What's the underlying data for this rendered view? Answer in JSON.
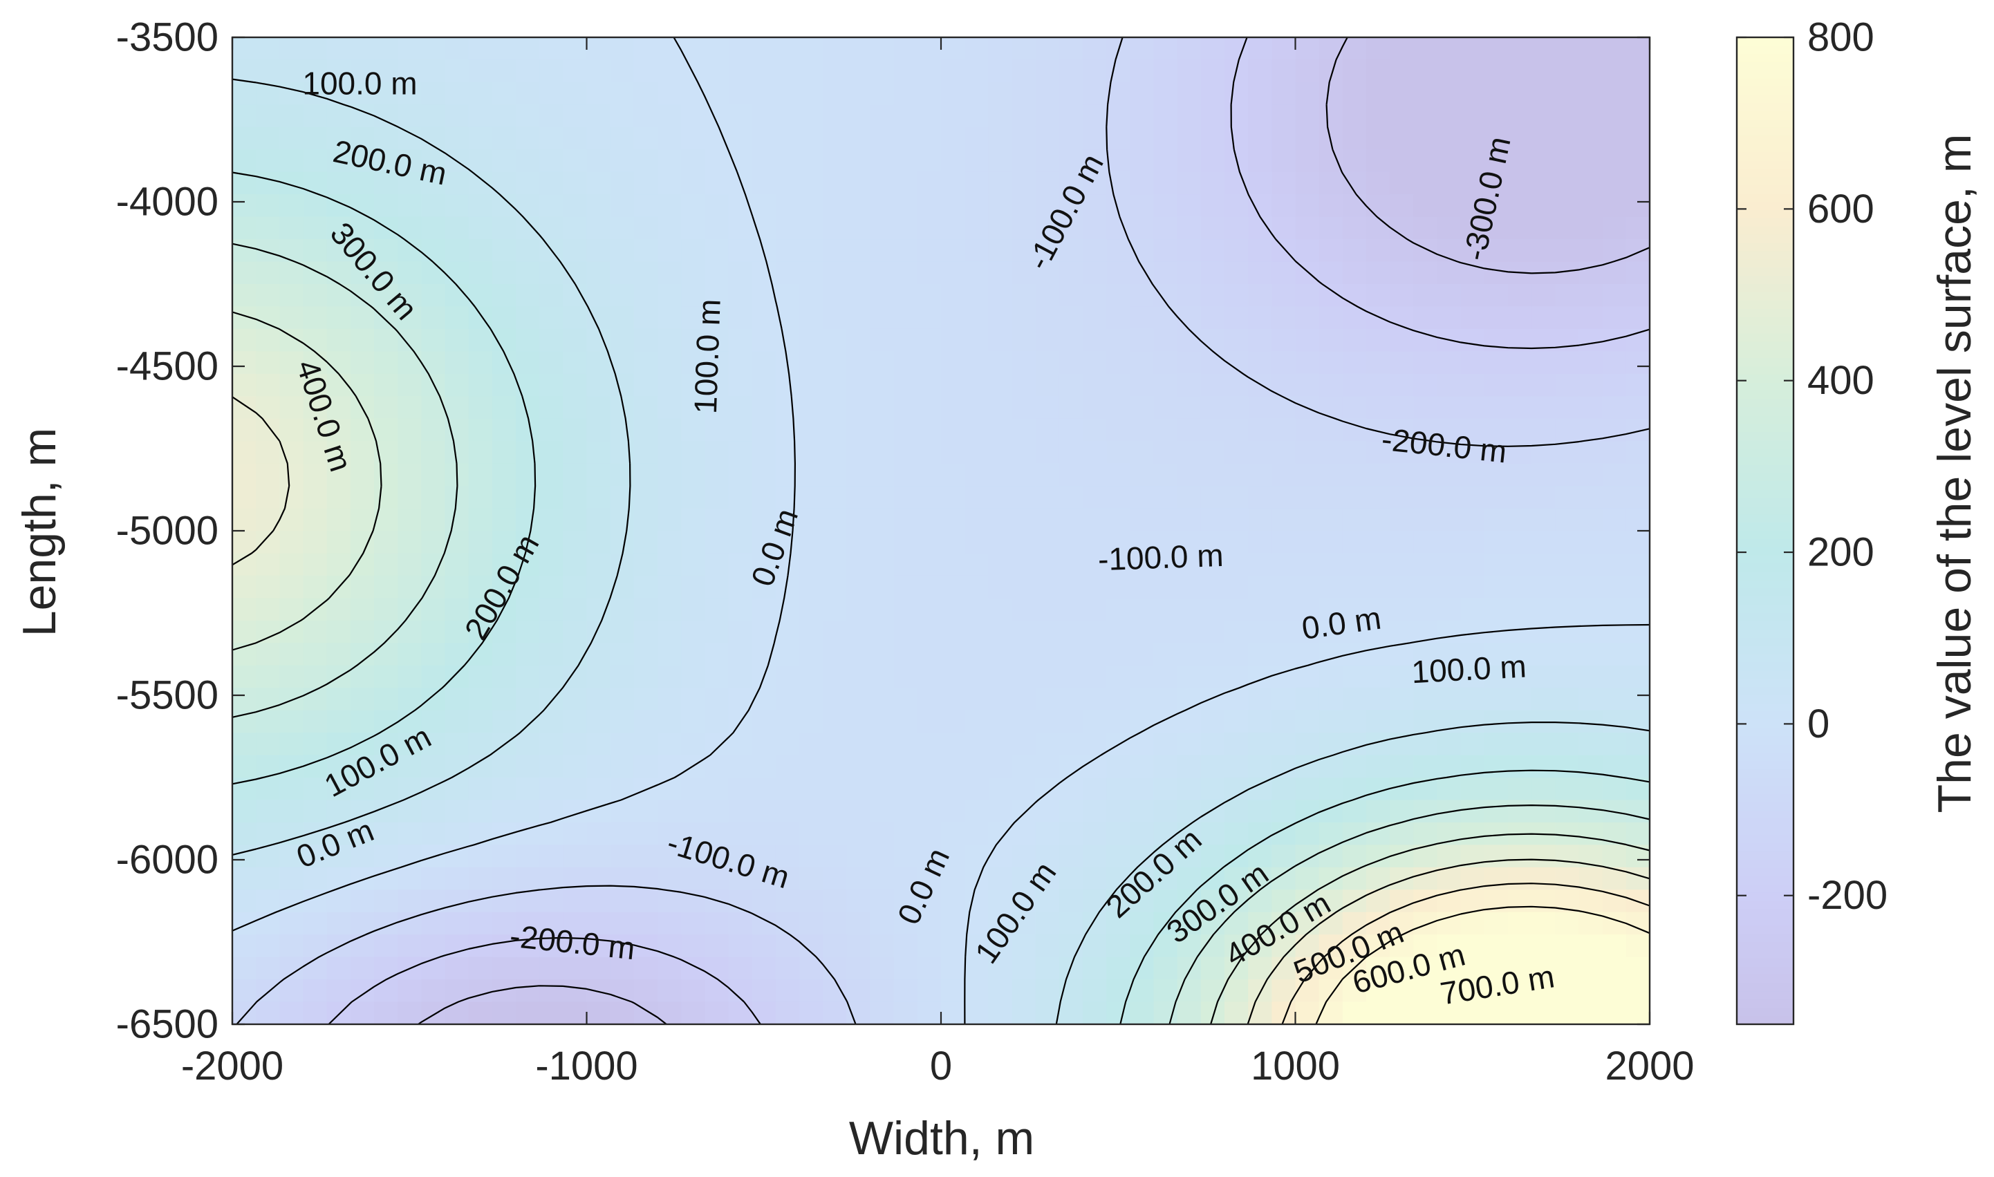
{
  "chart_data": {
    "type": "contour",
    "title": "",
    "xlabel": "Width, m",
    "ylabel": "Length, m",
    "xlim": [
      -2000,
      2000
    ],
    "ylim": [
      -6500,
      -3500
    ],
    "xticks": [
      "-2000",
      "-1000",
      "0",
      "1000",
      "2000"
    ],
    "yticks": [
      "-3500",
      "-4000",
      "-4500",
      "-5000",
      "-5500",
      "-6000",
      "-6500"
    ],
    "contour_levels": [
      -300,
      -200,
      -100,
      0,
      100,
      200,
      300,
      400,
      500,
      600,
      700
    ],
    "level_unit": "m",
    "contour_labels": [
      {
        "text": "100.0 m",
        "x": -1640,
        "y": -3640,
        "angle": 0
      },
      {
        "text": "200.0 m",
        "x": -1555,
        "y": -3880,
        "angle": 12
      },
      {
        "text": "300.0 m",
        "x": -1600,
        "y": -4210,
        "angle": 50
      },
      {
        "text": "400.0 m",
        "x": -1740,
        "y": -4650,
        "angle": 72
      },
      {
        "text": "100.0 m",
        "x": -660,
        "y": -4470,
        "angle": -88
      },
      {
        "text": "200.0 m",
        "x": -1240,
        "y": -5170,
        "angle": -60
      },
      {
        "text": "100.0 m",
        "x": -1590,
        "y": -5700,
        "angle": -28
      },
      {
        "text": "0.0 m",
        "x": -1710,
        "y": -5950,
        "angle": -22
      },
      {
        "text": "0.0 m",
        "x": -470,
        "y": -5050,
        "angle": -70
      },
      {
        "text": "-100.0 m",
        "x": -600,
        "y": -6000,
        "angle": 17
      },
      {
        "text": "-200.0 m",
        "x": -1040,
        "y": -6250,
        "angle": 6
      },
      {
        "text": "-100.0 m",
        "x": 350,
        "y": -4030,
        "angle": -62
      },
      {
        "text": "-300.0 m",
        "x": 1540,
        "y": -3990,
        "angle": -78
      },
      {
        "text": "-200.0 m",
        "x": 1420,
        "y": -4740,
        "angle": 6
      },
      {
        "text": "-100.0 m",
        "x": 620,
        "y": -5080,
        "angle": -2
      },
      {
        "text": "0.0 m",
        "x": 1130,
        "y": -5280,
        "angle": -8
      },
      {
        "text": "100.0 m",
        "x": 1490,
        "y": -5420,
        "angle": -3
      },
      {
        "text": "0.0 m",
        "x": -50,
        "y": -6080,
        "angle": -65
      },
      {
        "text": "100.0 m",
        "x": 210,
        "y": -6160,
        "angle": -55
      },
      {
        "text": "200.0 m",
        "x": 600,
        "y": -6040,
        "angle": -42
      },
      {
        "text": "300.0 m",
        "x": 780,
        "y": -6130,
        "angle": -35
      },
      {
        "text": "400.0 m",
        "x": 950,
        "y": -6210,
        "angle": -30
      },
      {
        "text": "500.0 m",
        "x": 1150,
        "y": -6280,
        "angle": -22
      },
      {
        "text": "600.0 m",
        "x": 1320,
        "y": -6330,
        "angle": -15
      },
      {
        "text": "700.0 m",
        "x": 1570,
        "y": -6380,
        "angle": -9
      }
    ],
    "colorbar": {
      "label": "The value of the level surface, m",
      "range": [
        -350,
        800
      ],
      "ticks": [
        "800",
        "600",
        "400",
        "200",
        "0",
        "-200"
      ],
      "tick_values": [
        800,
        600,
        400,
        200,
        0,
        -200
      ],
      "colors": [
        {
          "value": -350,
          "color": "#c8c2ea"
        },
        {
          "value": -200,
          "color": "#cdcef6"
        },
        {
          "value": 0,
          "color": "#cde2f8"
        },
        {
          "value": 200,
          "color": "#bfe9ea"
        },
        {
          "value": 400,
          "color": "#d6eedb"
        },
        {
          "value": 600,
          "color": "#faedd0"
        },
        {
          "value": 800,
          "color": "#fdfdd6"
        }
      ]
    }
  }
}
